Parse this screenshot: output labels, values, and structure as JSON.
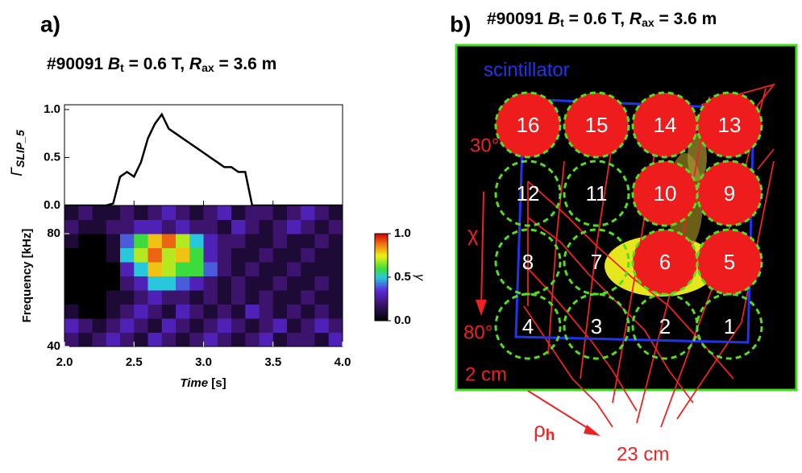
{
  "panel_a": {
    "label": "a)",
    "title_parts": [
      "#90091 ",
      "B",
      "t",
      " = 0.6 T, ",
      "R",
      "ax",
      " = 3.6 m"
    ]
  },
  "panel_b": {
    "label": "b)",
    "title_parts": [
      "#90091 ",
      "B",
      "t",
      " = 0.6 T, ",
      "R",
      "ax",
      " = 3.6 m"
    ],
    "scintillator": "scintillator",
    "angle_top": "30°",
    "chi": "χ",
    "angle_bottom": "80°",
    "r_inner": "2 cm",
    "rho_parts": [
      "ρ",
      "h"
    ],
    "r_outer": "23 cm",
    "nodes": [
      {
        "label": "1",
        "filled": false
      },
      {
        "label": "2",
        "filled": false
      },
      {
        "label": "3",
        "filled": false
      },
      {
        "label": "4",
        "filled": false
      },
      {
        "label": "5",
        "filled": true
      },
      {
        "label": "6",
        "filled": true
      },
      {
        "label": "7",
        "filled": false
      },
      {
        "label": "8",
        "filled": false
      },
      {
        "label": "9",
        "filled": true
      },
      {
        "label": "10",
        "filled": true
      },
      {
        "label": "11",
        "filled": false
      },
      {
        "label": "12",
        "filled": false
      },
      {
        "label": "13",
        "filled": true
      },
      {
        "label": "14",
        "filled": true
      },
      {
        "label": "15",
        "filled": true
      },
      {
        "label": "16",
        "filled": true
      }
    ]
  },
  "chart_data": [
    {
      "type": "line",
      "ylabel_parts": [
        "Γ",
        "SLIP_5"
      ],
      "color": "#000000",
      "xlim": [
        2.0,
        4.0
      ],
      "ylim": [
        0,
        1.05
      ],
      "yticks": [
        {
          "value": 0,
          "label": "0.0"
        },
        {
          "value": 0.5,
          "label": "0.5"
        },
        {
          "value": 1,
          "label": "1.0"
        }
      ],
      "x": [
        2.0,
        2.05,
        2.1,
        2.15,
        2.2,
        2.25,
        2.3,
        2.35,
        2.4,
        2.45,
        2.5,
        2.55,
        2.6,
        2.65,
        2.7,
        2.75,
        2.8,
        2.85,
        2.9,
        2.95,
        3.0,
        3.05,
        3.1,
        3.15,
        3.2,
        3.25,
        3.3,
        3.35,
        3.4,
        3.5,
        3.6,
        3.7,
        3.8,
        3.9,
        4.0
      ],
      "values": [
        0,
        0,
        0,
        0,
        0,
        0,
        0,
        0.02,
        0.3,
        0.35,
        0.3,
        0.45,
        0.7,
        0.85,
        0.95,
        0.8,
        0.75,
        0.7,
        0.65,
        0.6,
        0.55,
        0.5,
        0.45,
        0.4,
        0.4,
        0.35,
        0.35,
        0,
        0,
        0,
        0,
        0,
        0,
        0,
        0
      ]
    },
    {
      "type": "heatmap",
      "ylabel": "Frequency [kHz]",
      "xlabel_parts": [
        "Time",
        " [s]"
      ],
      "xlim": [
        2.0,
        4.0
      ],
      "ylim": [
        40,
        90
      ],
      "xticks": [
        {
          "value": 2,
          "label": "2.0"
        },
        {
          "value": 2.5,
          "label": "2.5"
        },
        {
          "value": 3,
          "label": "3.0"
        },
        {
          "value": 3.5,
          "label": "3.5"
        },
        {
          "value": 4,
          "label": "4.0"
        }
      ],
      "yticks": [
        40,
        80
      ],
      "x_edges": [
        2.0,
        2.1,
        2.2,
        2.3,
        2.4,
        2.5,
        2.6,
        2.7,
        2.8,
        2.9,
        3.0,
        3.1,
        3.2,
        3.3,
        3.4,
        3.5,
        3.6,
        3.7,
        3.8,
        3.9,
        4.0
      ],
      "y_edges": [
        40,
        45,
        50,
        55,
        60,
        65,
        70,
        75,
        80,
        85,
        90
      ],
      "z": [
        [
          0.2,
          0.1,
          0.2,
          0.3,
          0.2,
          0.1,
          0.3,
          0.2,
          0.1,
          0.2,
          0.3,
          0.2,
          0.1,
          0.2,
          0.3,
          0.1,
          0.2,
          0.2,
          0.1,
          0.3
        ],
        [
          0.3,
          0.2,
          0.1,
          0.2,
          0.3,
          0.2,
          0.1,
          0.3,
          0.2,
          0.1,
          0.2,
          0.3,
          0.2,
          0.1,
          0.2,
          0.3,
          0.1,
          0.2,
          0.3,
          0.2
        ],
        [
          0.1,
          0,
          0,
          0.1,
          0.2,
          0.3,
          0.2,
          0.1,
          0.3,
          0.2,
          0.1,
          0.2,
          0.1,
          0.3,
          0.2,
          0.1,
          0.2,
          0.1,
          0.2,
          0.1
        ],
        [
          0,
          0,
          0,
          0.1,
          0.1,
          0.2,
          0.3,
          0.2,
          0.2,
          0.1,
          0.2,
          0.1,
          0.2,
          0.1,
          0.2,
          0.1,
          0.1,
          0.2,
          0.1,
          0.1
        ],
        [
          0,
          0,
          0,
          0,
          0.2,
          0.3,
          0.5,
          0.5,
          0.4,
          0.3,
          0.2,
          0.1,
          0.2,
          0.1,
          0.1,
          0.2,
          0.1,
          0.1,
          0.2,
          0.1
        ],
        [
          0,
          0,
          0,
          0,
          0.3,
          0.5,
          0.8,
          0.7,
          0.6,
          0.6,
          0.4,
          0.2,
          0.1,
          0.2,
          0.1,
          0.1,
          0.2,
          0.1,
          0.1,
          0.1
        ],
        [
          0,
          0,
          0,
          0.1,
          0.5,
          0.7,
          0.9,
          0.7,
          0.8,
          0.6,
          0.3,
          0.2,
          0.1,
          0.1,
          0.2,
          0.1,
          0.1,
          0.2,
          0.1,
          0.1
        ],
        [
          0.1,
          0,
          0,
          0.1,
          0.4,
          0.6,
          0.8,
          0.9,
          0.7,
          0.5,
          0.3,
          0.2,
          0.2,
          0.1,
          0.1,
          0.2,
          0.1,
          0.1,
          0.2,
          0.1
        ],
        [
          0.2,
          0.1,
          0.1,
          0.2,
          0.2,
          0.3,
          0.3,
          0.2,
          0.3,
          0.2,
          0.2,
          0.1,
          0.3,
          0.2,
          0.1,
          0.2,
          0.3,
          0.2,
          0.1,
          0.2
        ],
        [
          0.1,
          0.2,
          0.1,
          0.1,
          0.2,
          0.1,
          0.2,
          0.3,
          0.2,
          0.1,
          0.2,
          0.3,
          0.1,
          0.2,
          0.2,
          0.1,
          0.2,
          0.3,
          0.2,
          0.1
        ]
      ],
      "clim": [
        0,
        1
      ],
      "colorbar_label": "γ",
      "colorbar_ticks": [
        {
          "value": 0,
          "label": "0.0"
        },
        {
          "value": 0.5,
          "label": "0.5"
        },
        {
          "value": 1,
          "label": "1.0"
        }
      ]
    }
  ]
}
